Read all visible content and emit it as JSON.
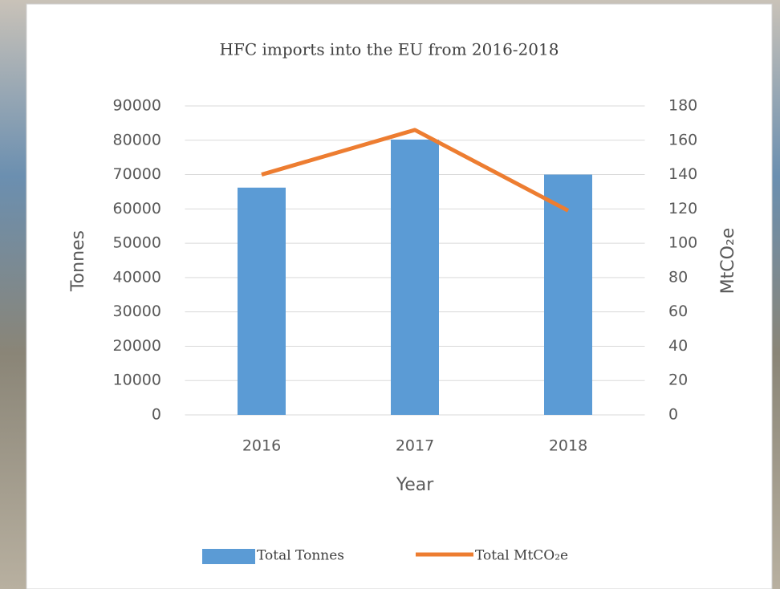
{
  "chart_data": {
    "type": "bar",
    "title": "HFC imports into the EU from 2016-2018",
    "x_label": "Year",
    "y_label": "Tonnes",
    "y2_label": "MtCO₂e",
    "categories": [
      "2016",
      "2017",
      "2018"
    ],
    "series": [
      {
        "name": "Total Tonnes",
        "type": "bar",
        "color": "#5b9bd5",
        "values": [
          66200,
          80200,
          70000
        ]
      },
      {
        "name": "Total MtCO₂e",
        "type": "line",
        "axis": "y2",
        "color": "#ed7d31",
        "values": [
          140,
          166,
          119
        ]
      }
    ],
    "ylim": [
      0,
      90000
    ],
    "yticks": [
      0,
      10000,
      20000,
      30000,
      40000,
      50000,
      60000,
      70000,
      80000,
      90000
    ],
    "y2lim": [
      0,
      180
    ],
    "y2ticks": [
      0,
      20,
      40,
      60,
      80,
      100,
      120,
      140,
      160,
      180
    ],
    "grid": true,
    "legend": "bottom"
  }
}
